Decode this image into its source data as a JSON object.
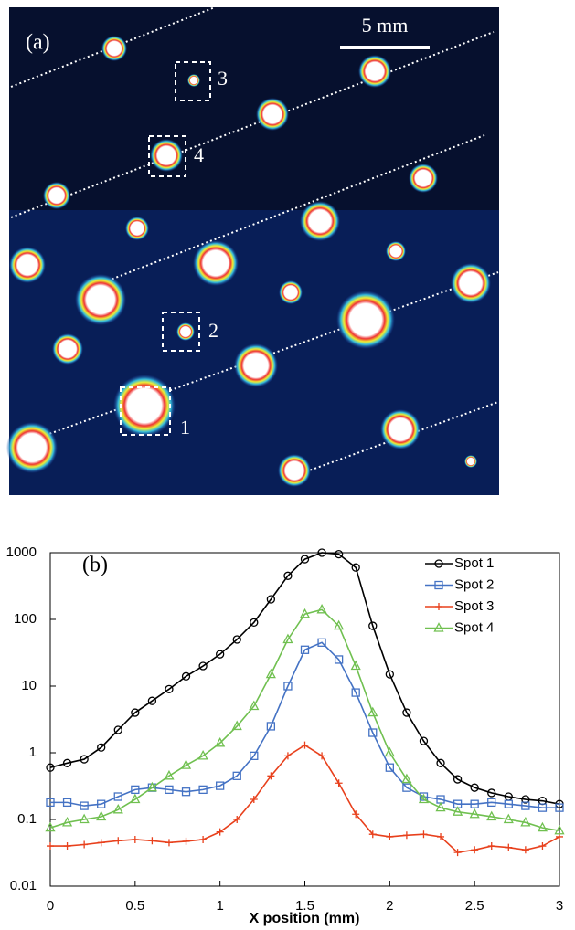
{
  "image": {
    "label": "(a)",
    "scale_bar": "5 mm",
    "spot_labels": [
      "1",
      "2",
      "3",
      "4"
    ]
  },
  "chart_data": {
    "type": "line",
    "panel_label": "(b)",
    "x_label": "X position (mm)",
    "x": [
      0,
      0.1,
      0.2,
      0.3,
      0.4,
      0.5,
      0.6,
      0.7,
      0.8,
      0.9,
      1.0,
      1.1,
      1.2,
      1.3,
      1.4,
      1.5,
      1.6,
      1.7,
      1.8,
      1.9,
      2.0,
      2.1,
      2.2,
      2.3,
      2.4,
      2.5,
      2.6,
      2.7,
      2.8,
      2.9,
      3.0
    ],
    "series": [
      {
        "name": "Spot 1",
        "color": "#000000",
        "marker": "circle",
        "values": [
          0.6,
          0.7,
          0.8,
          1.2,
          2.2,
          4,
          6,
          9,
          14,
          20,
          30,
          50,
          90,
          200,
          450,
          800,
          1000,
          950,
          600,
          80,
          15,
          4,
          1.5,
          0.7,
          0.4,
          0.3,
          0.25,
          0.22,
          0.2,
          0.19,
          0.17
        ]
      },
      {
        "name": "Spot 2",
        "color": "#4472c4",
        "marker": "square",
        "values": [
          0.18,
          0.18,
          0.16,
          0.17,
          0.22,
          0.28,
          0.3,
          0.28,
          0.26,
          0.28,
          0.32,
          0.45,
          0.9,
          2.5,
          10,
          35,
          45,
          25,
          8,
          2,
          0.6,
          0.3,
          0.22,
          0.2,
          0.17,
          0.17,
          0.18,
          0.17,
          0.16,
          0.15,
          0.15
        ]
      },
      {
        "name": "Spot 3",
        "color": "#e8401c",
        "marker": "plus",
        "values": [
          0.04,
          0.04,
          0.042,
          0.045,
          0.048,
          0.05,
          0.048,
          0.045,
          0.047,
          0.05,
          0.065,
          0.1,
          0.2,
          0.45,
          0.9,
          1.3,
          0.9,
          0.35,
          0.12,
          0.06,
          0.055,
          0.058,
          0.06,
          0.055,
          0.032,
          0.035,
          0.04,
          0.038,
          0.035,
          0.04,
          0.055
        ]
      },
      {
        "name": "Spot 4",
        "color": "#70c050",
        "marker": "triangle",
        "values": [
          0.075,
          0.09,
          0.1,
          0.11,
          0.14,
          0.2,
          0.3,
          0.45,
          0.65,
          0.9,
          1.4,
          2.5,
          5,
          15,
          50,
          120,
          140,
          80,
          20,
          4,
          1,
          0.4,
          0.2,
          0.15,
          0.13,
          0.12,
          0.11,
          0.1,
          0.09,
          0.075,
          0.068
        ]
      }
    ],
    "xlim": [
      0,
      3
    ],
    "xticks": [
      0,
      0.5,
      1,
      1.5,
      2,
      2.5,
      3
    ],
    "ylim": [
      0.01,
      1000
    ],
    "yticks": [
      0.01,
      0.1,
      1,
      10,
      100,
      1000
    ],
    "log_y": true,
    "legend": "top-right"
  }
}
